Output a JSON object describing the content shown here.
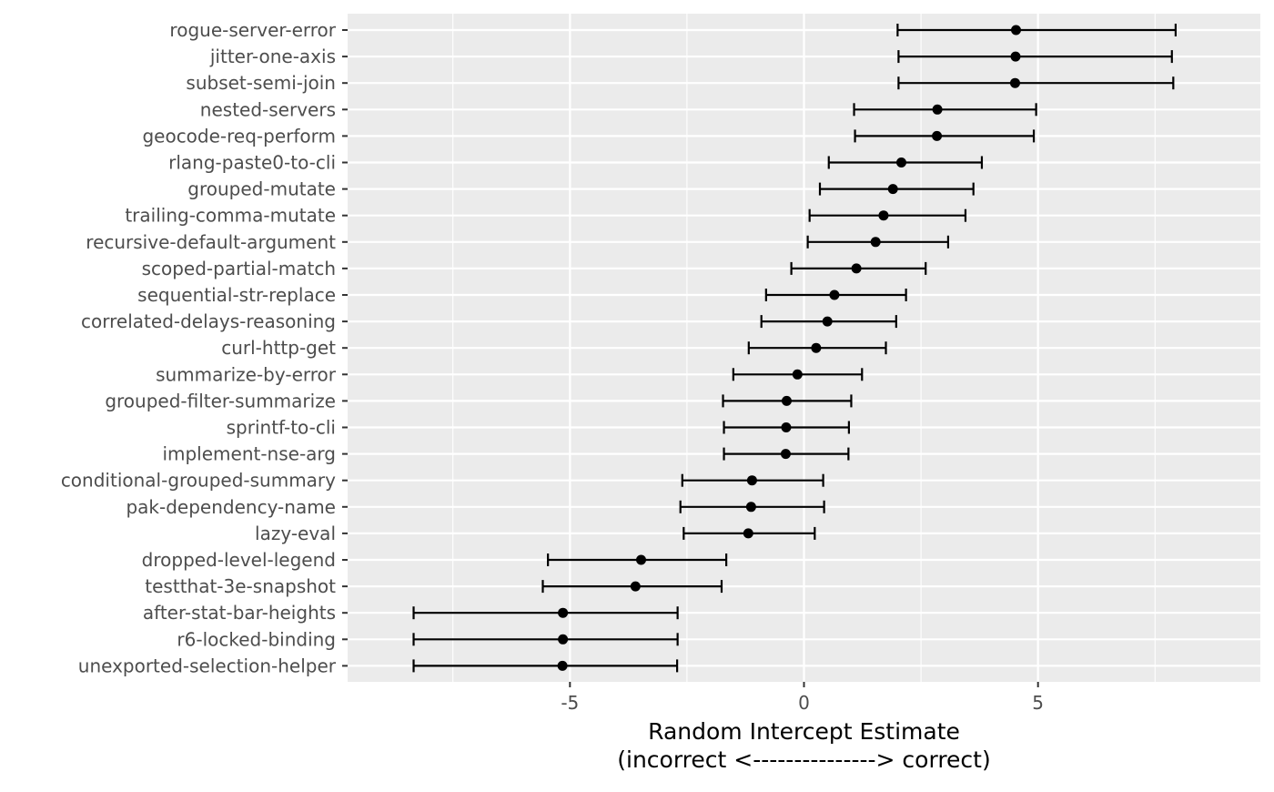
{
  "chart_data": {
    "type": "scatter",
    "orientation": "horizontal",
    "error_bars": true,
    "xlabel_lines": [
      "Random Intercept Estimate",
      "(incorrect <---------------> correct)"
    ],
    "ylabel": "",
    "xlim": [
      -9.75,
      9.75
    ],
    "x_ticks": [
      -5,
      0,
      5
    ],
    "x_tick_labels": [
      "-5",
      "0",
      "5"
    ],
    "grid": true,
    "legend": "none",
    "panel_background": "#ebebeb",
    "grid_color": "#ffffff",
    "point_color": "#000000",
    "categories": [
      "rogue-server-error",
      "jitter-one-axis",
      "subset-semi-join",
      "nested-servers",
      "geocode-req-perform",
      "rlang-paste0-to-cli",
      "grouped-mutate",
      "trailing-comma-mutate",
      "recursive-default-argument",
      "scoped-partial-match",
      "sequential-str-replace",
      "correlated-delays-reasoning",
      "curl-http-get",
      "summarize-by-error",
      "grouped-filter-summarize",
      "sprintf-to-cli",
      "implement-nse-arg",
      "conditional-grouped-summary",
      "pak-dependency-name",
      "lazy-eval",
      "dropped-level-legend",
      "testthat-3e-snapshot",
      "after-stat-bar-heights",
      "r6-locked-binding",
      "unexported-selection-helper"
    ],
    "estimates": [
      4.53,
      4.52,
      4.51,
      2.85,
      2.84,
      2.08,
      1.9,
      1.7,
      1.53,
      1.12,
      0.65,
      0.5,
      0.26,
      -0.14,
      -0.37,
      -0.38,
      -0.39,
      -1.11,
      -1.13,
      -1.19,
      -3.48,
      -3.6,
      -5.15,
      -5.15,
      -5.16
    ],
    "lower": [
      2.0,
      2.02,
      2.02,
      1.07,
      1.09,
      0.53,
      0.34,
      0.12,
      0.08,
      -0.27,
      -0.81,
      -0.91,
      -1.18,
      -1.51,
      -1.73,
      -1.71,
      -1.71,
      -2.6,
      -2.64,
      -2.57,
      -5.47,
      -5.58,
      -8.34,
      -8.34,
      -8.34
    ],
    "upper": [
      7.94,
      7.86,
      7.89,
      4.96,
      4.91,
      3.8,
      3.62,
      3.45,
      3.08,
      2.6,
      2.18,
      1.97,
      1.75,
      1.24,
      1.01,
      0.96,
      0.95,
      0.41,
      0.43,
      0.23,
      -1.66,
      -1.76,
      -2.7,
      -2.7,
      -2.71
    ]
  }
}
